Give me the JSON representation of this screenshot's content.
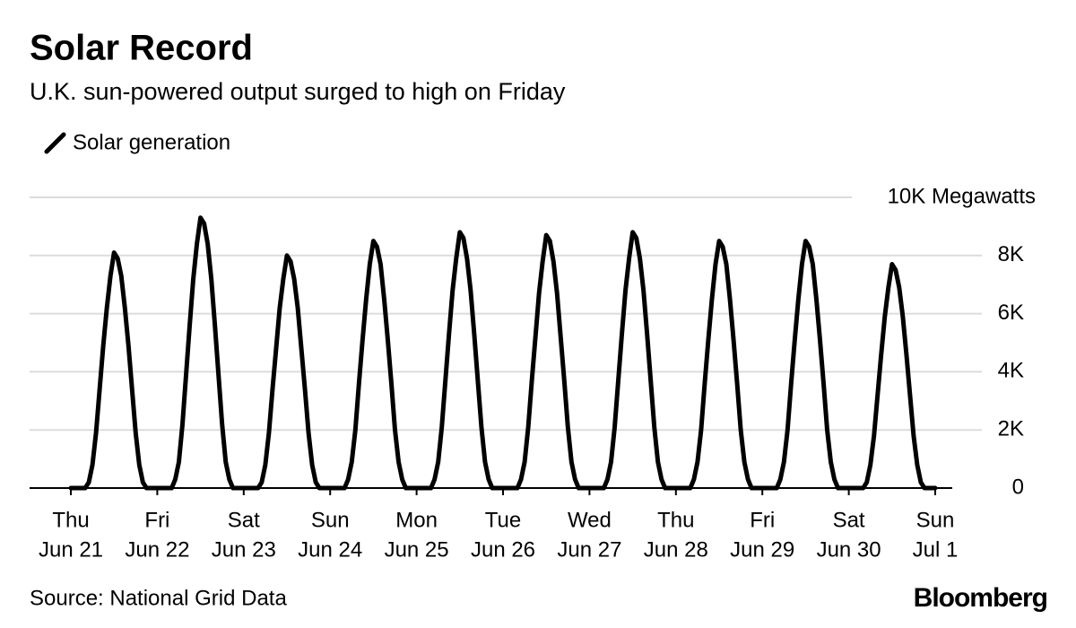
{
  "chart_data": {
    "type": "line",
    "title": "Solar Record",
    "subtitle": "U.K. sun-powered output surged to high on Friday",
    "source": "Source: National Grid Data",
    "logo": "Bloomberg",
    "x": [
      0,
      1,
      2,
      3,
      4,
      5,
      6,
      7,
      8,
      9,
      10,
      11,
      12,
      13,
      14,
      15,
      16,
      17,
      18,
      19,
      20,
      21,
      22,
      23,
      24,
      25,
      26,
      27,
      28,
      29,
      30,
      31,
      32,
      33,
      34,
      35,
      36,
      37,
      38,
      39,
      40,
      41,
      42,
      43,
      44,
      45,
      46,
      47,
      48,
      49,
      50,
      51,
      52,
      53,
      54,
      55,
      56,
      57,
      58,
      59,
      60,
      61,
      62,
      63,
      64,
      65,
      66,
      67,
      68,
      69,
      70,
      71,
      72,
      73,
      74,
      75,
      76,
      77,
      78,
      79,
      80,
      81,
      82,
      83,
      84,
      85,
      86,
      87,
      88,
      89,
      90,
      91,
      92,
      93,
      94,
      95,
      96,
      97,
      98,
      99,
      100,
      101,
      102,
      103,
      104,
      105,
      106,
      107,
      108,
      109,
      110,
      111,
      112,
      113,
      114,
      115,
      116,
      117,
      118,
      119,
      120,
      121,
      122,
      123,
      124,
      125,
      126,
      127,
      128,
      129,
      130,
      131,
      132,
      133,
      134,
      135,
      136,
      137,
      138,
      139,
      140,
      141,
      142,
      143,
      144,
      145,
      146,
      147,
      148,
      149,
      150,
      151,
      152,
      153,
      154,
      155,
      156,
      157,
      158,
      159,
      160,
      161,
      162,
      163,
      164,
      165,
      166,
      167,
      168,
      169,
      170,
      171,
      172,
      173,
      174,
      175,
      176,
      177,
      178,
      179,
      180,
      181,
      182,
      183,
      184,
      185,
      186,
      187,
      188,
      189,
      190,
      191,
      192,
      193,
      194,
      195,
      196,
      197,
      198,
      199,
      200,
      201,
      202,
      203,
      204,
      205,
      206,
      207,
      208,
      209,
      210,
      211,
      212,
      213,
      214,
      215,
      216,
      217,
      218,
      219,
      220,
      221,
      222,
      223,
      224,
      225,
      226,
      227,
      228,
      229,
      230,
      231,
      232,
      233,
      234,
      235,
      236,
      237,
      238,
      239,
      240
    ],
    "series": [
      {
        "name": "Solar generation",
        "color": "#000000",
        "values": [
          0,
          0,
          0,
          0,
          0,
          200,
          800,
          1900,
          3400,
          4900,
          6200,
          7300,
          8100,
          7900,
          7300,
          6200,
          4900,
          3400,
          1900,
          800,
          200,
          0,
          0,
          0,
          0,
          0,
          0,
          0,
          0,
          300,
          900,
          2200,
          3900,
          5600,
          7200,
          8400,
          9300,
          9100,
          8400,
          7200,
          5600,
          3900,
          2200,
          900,
          300,
          0,
          0,
          0,
          0,
          0,
          0,
          0,
          0,
          200,
          800,
          1900,
          3400,
          4800,
          6200,
          7200,
          8000,
          7800,
          7200,
          6200,
          4800,
          3400,
          1900,
          800,
          200,
          0,
          0,
          0,
          0,
          0,
          0,
          0,
          0,
          300,
          900,
          2000,
          3600,
          5100,
          6500,
          7700,
          8500,
          8300,
          7700,
          6500,
          5100,
          3600,
          2000,
          900,
          300,
          0,
          0,
          0,
          0,
          0,
          0,
          0,
          0,
          300,
          900,
          2100,
          3700,
          5300,
          6800,
          7900,
          8800,
          8600,
          7900,
          6800,
          5300,
          3700,
          2100,
          900,
          300,
          0,
          0,
          0,
          0,
          0,
          0,
          0,
          0,
          300,
          900,
          2100,
          3700,
          5200,
          6700,
          7800,
          8700,
          8500,
          7800,
          6700,
          5200,
          3700,
          2100,
          900,
          300,
          0,
          0,
          0,
          0,
          0,
          0,
          0,
          0,
          300,
          900,
          2100,
          3700,
          5300,
          6800,
          7900,
          8800,
          8600,
          7900,
          6800,
          5300,
          3700,
          2100,
          900,
          300,
          0,
          0,
          0,
          0,
          0,
          0,
          0,
          0,
          300,
          900,
          2000,
          3600,
          5100,
          6500,
          7700,
          8500,
          8300,
          7700,
          6500,
          5100,
          3600,
          2000,
          900,
          300,
          0,
          0,
          0,
          0,
          0,
          0,
          0,
          0,
          300,
          900,
          2000,
          3600,
          5100,
          6500,
          7700,
          8500,
          8300,
          7700,
          6500,
          5100,
          3600,
          2000,
          900,
          300,
          0,
          0,
          0,
          0,
          0,
          0,
          0,
          0,
          200,
          800,
          1800,
          3200,
          4600,
          5900,
          6900,
          7700,
          7500,
          6900,
          5900,
          4600,
          3200,
          1800,
          800,
          200,
          0,
          0,
          0,
          0
        ]
      }
    ],
    "xlim": [
      0,
      240
    ],
    "xticks": [
      {
        "value": 0,
        "label": [
          "Thu",
          "Jun 21"
        ]
      },
      {
        "value": 24,
        "label": [
          "Fri",
          "Jun 22"
        ]
      },
      {
        "value": 48,
        "label": [
          "Sat",
          "Jun 23"
        ]
      },
      {
        "value": 72,
        "label": [
          "Sun",
          "Jun 24"
        ]
      },
      {
        "value": 96,
        "label": [
          "Mon",
          "Jun 25"
        ]
      },
      {
        "value": 120,
        "label": [
          "Tue",
          "Jun 26"
        ]
      },
      {
        "value": 144,
        "label": [
          "Wed",
          "Jun 27"
        ]
      },
      {
        "value": 168,
        "label": [
          "Thu",
          "Jun 28"
        ]
      },
      {
        "value": 192,
        "label": [
          "Fri",
          "Jun 29"
        ]
      },
      {
        "value": 216,
        "label": [
          "Sat",
          "Jun 30"
        ]
      },
      {
        "value": 240,
        "label": [
          "Sun",
          "Jul 1"
        ]
      }
    ],
    "ylim": [
      0,
      10000
    ],
    "yticks": [
      0,
      {
        "value": 2000,
        "label": "2K"
      },
      {
        "value": 4000,
        "label": "4K"
      },
      {
        "value": 6000,
        "label": "6K"
      },
      {
        "value": 8000,
        "label": "8K"
      },
      {
        "value": 10000,
        "label": "10K Megawatts"
      }
    ],
    "grid": true
  }
}
